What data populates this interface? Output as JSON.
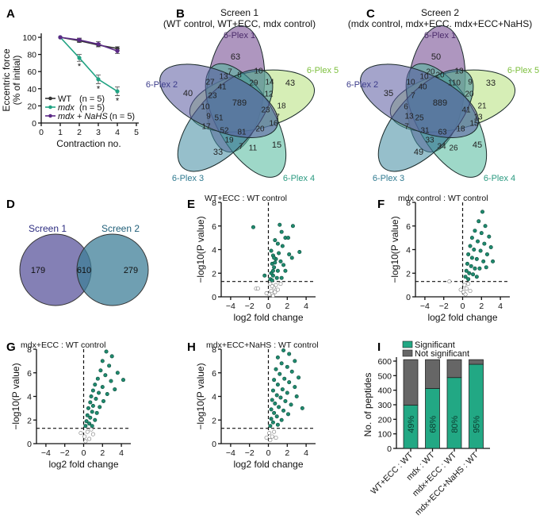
{
  "panels": {
    "A": "A",
    "B": "B",
    "C": "C",
    "D": "D",
    "E": "E",
    "F": "F",
    "G": "G",
    "H": "H",
    "I": "I"
  },
  "colors": {
    "wt": "#333333",
    "mdx": "#21a383",
    "nahs": "#5b2a86",
    "sig": "#1f8a6e",
    "nonsig": "#777777",
    "bar_sig": "#22a884",
    "bar_nonsig": "#666666"
  },
  "chart_data": [
    {
      "id": "A",
      "type": "line",
      "xlabel": "Contraction no.",
      "ylabel": [
        "Eccentric force",
        "(% of initial)"
      ],
      "xlim": [
        0,
        5
      ],
      "ylim": [
        0,
        100
      ],
      "xticks": [
        "0",
        "1",
        "2",
        "3",
        "4",
        "5"
      ],
      "yticks": [
        "0",
        "20",
        "40",
        "60",
        "80",
        "100"
      ],
      "x": [
        1,
        2,
        3,
        4
      ],
      "series": [
        {
          "name": "WT",
          "n": "(n = 5)",
          "values": [
            100,
            96,
            91,
            87
          ],
          "err": [
            0,
            2,
            2,
            2
          ]
        },
        {
          "name": "mdx",
          "n": "(n = 5)",
          "values": [
            100,
            76,
            51,
            37
          ],
          "err": [
            0,
            4,
            5,
            5
          ]
        },
        {
          "name": "mdx + NaHS",
          "n": "(n = 5)",
          "values": [
            100,
            97,
            92,
            84
          ],
          "err": [
            0,
            2,
            3,
            3
          ]
        }
      ],
      "annotations": [
        "*",
        "*",
        "*"
      ]
    },
    {
      "id": "B",
      "type": "venn",
      "title": "Screen 1",
      "subtitle": "(WT control, WT+ECC, mdx control)",
      "sets": [
        "6-Plex 1",
        "6-Plex 5",
        "6-Plex 4",
        "6-Plex 3",
        "6-Plex 2"
      ],
      "center": "789",
      "regions": [
        "63",
        "40",
        "43",
        "15",
        "33",
        "7",
        "8",
        "10",
        "27",
        "13",
        "41",
        "29",
        "14",
        "12",
        "23",
        "10",
        "9",
        "51",
        "23",
        "18",
        "7",
        "17",
        "52",
        "81",
        "20",
        "16",
        "19",
        "7",
        "11"
      ]
    },
    {
      "id": "C",
      "type": "venn",
      "title": "Screen 2",
      "subtitle": "(mdx control, mdx+ECC. mdx+ECC+NaHS)",
      "sets": [
        "6-Plex 1",
        "6-Plex 5",
        "6-Plex 4",
        "6-Plex 3",
        "6-Plex 2"
      ],
      "center": "889",
      "regions": [
        "50",
        "35",
        "33",
        "45",
        "49",
        "20",
        "20",
        "13",
        "10",
        "10",
        "40",
        "110",
        "9",
        "20",
        "7",
        "6",
        "13",
        "25",
        "41",
        "21",
        "13",
        "7",
        "31",
        "63",
        "18",
        "15",
        "33",
        "34",
        "26"
      ]
    },
    {
      "id": "D",
      "type": "venn",
      "sets": [
        "Screen 1",
        "Screen 2"
      ],
      "only1": "179",
      "both": "610",
      "only2": "279"
    },
    {
      "id": "E",
      "type": "scatter",
      "title": "WT+ECC : WT control",
      "xlabel": "log2 fold change",
      "ylabel": "−log10(P value)",
      "xlim": [
        -5,
        5
      ],
      "ylim": [
        0,
        8
      ],
      "threshold": 1.3,
      "points": [
        [
          -1.6,
          5.9
        ],
        [
          1.2,
          6.1
        ],
        [
          2.6,
          6.0
        ],
        [
          1.8,
          5.0
        ],
        [
          2.1,
          5.0
        ],
        [
          1.4,
          5.5
        ],
        [
          0.7,
          4.8
        ],
        [
          1.0,
          4.5
        ],
        [
          1.5,
          4.3
        ],
        [
          3.3,
          3.8
        ],
        [
          2.2,
          3.6
        ],
        [
          0.5,
          3.5
        ],
        [
          0.8,
          3.2
        ],
        [
          1.3,
          3.0
        ],
        [
          0.4,
          2.8
        ],
        [
          0.6,
          2.5
        ],
        [
          1.0,
          2.2
        ],
        [
          1.8,
          2.2
        ],
        [
          0.3,
          2.0
        ],
        [
          0.5,
          1.8
        ],
        [
          0.9,
          1.6
        ],
        [
          -0.4,
          1.8
        ],
        [
          0.2,
          1.5
        ],
        [
          1.4,
          1.6
        ],
        [
          0.7,
          2.9
        ],
        [
          0.3,
          3.9
        ],
        [
          2.5,
          3.3
        ],
        [
          1.6,
          2.7
        ],
        [
          0.5,
          2.2
        ],
        [
          1.1,
          3.7
        ],
        [
          0.4,
          1.4
        ],
        [
          0.6,
          3.3
        ],
        [
          -1.3,
          0.7
        ],
        [
          -1.1,
          0.7
        ],
        [
          0.1,
          0.2
        ],
        [
          0.3,
          0.5
        ],
        [
          0.6,
          0.8
        ],
        [
          0.8,
          1.0
        ],
        [
          0.2,
          1.1
        ],
        [
          1.0,
          0.6
        ],
        [
          -0.2,
          0.3
        ],
        [
          0.5,
          0.1
        ],
        [
          1.3,
          1.1
        ],
        [
          0.4,
          0.9
        ],
        [
          0.7,
          0.4
        ]
      ]
    },
    {
      "id": "F",
      "type": "scatter",
      "title": "mdx control : WT control",
      "xlabel": "log2 fold change",
      "ylabel": "−log10(P value)",
      "xlim": [
        -5,
        5
      ],
      "ylim": [
        0,
        8
      ],
      "threshold": 1.3,
      "points": [
        [
          2.1,
          7.2
        ],
        [
          1.7,
          6.4
        ],
        [
          2.4,
          6.0
        ],
        [
          1.3,
          5.6
        ],
        [
          2.0,
          5.4
        ],
        [
          2.8,
          5.1
        ],
        [
          1.0,
          5.0
        ],
        [
          1.6,
          4.7
        ],
        [
          2.3,
          4.5
        ],
        [
          3.0,
          4.2
        ],
        [
          0.8,
          4.3
        ],
        [
          1.2,
          4.0
        ],
        [
          1.9,
          3.9
        ],
        [
          2.6,
          3.6
        ],
        [
          0.6,
          3.6
        ],
        [
          1.0,
          3.3
        ],
        [
          1.5,
          3.2
        ],
        [
          2.2,
          3.0
        ],
        [
          3.2,
          3.0
        ],
        [
          0.5,
          2.8
        ],
        [
          0.9,
          2.6
        ],
        [
          1.3,
          2.4
        ],
        [
          1.8,
          2.4
        ],
        [
          0.4,
          2.2
        ],
        [
          0.7,
          2.0
        ],
        [
          1.1,
          1.9
        ],
        [
          0.3,
          1.7
        ],
        [
          0.6,
          1.5
        ],
        [
          1.5,
          1.7
        ],
        [
          2.5,
          2.5
        ],
        [
          -1.4,
          1.3
        ],
        [
          0.2,
          1.0
        ],
        [
          0.4,
          0.7
        ],
        [
          0.1,
          0.4
        ],
        [
          0.6,
          1.1
        ],
        [
          0.8,
          0.5
        ],
        [
          -0.2,
          0.6
        ],
        [
          0.3,
          0.2
        ]
      ]
    },
    {
      "id": "G",
      "type": "scatter",
      "title": "mdx+ECC : WT control",
      "xlabel": "log2 fold change",
      "ylabel": "−log10(P value)",
      "xlim": [
        -5,
        5
      ],
      "ylim": [
        0,
        8
      ],
      "threshold": 1.3,
      "points": [
        [
          2.4,
          7.8
        ],
        [
          3.0,
          7.4
        ],
        [
          2.0,
          7.0
        ],
        [
          2.7,
          6.6
        ],
        [
          3.6,
          6.0
        ],
        [
          1.8,
          6.2
        ],
        [
          2.3,
          5.8
        ],
        [
          1.5,
          5.5
        ],
        [
          2.9,
          5.3
        ],
        [
          1.2,
          5.0
        ],
        [
          2.0,
          4.8
        ],
        [
          3.3,
          4.6
        ],
        [
          1.0,
          4.5
        ],
        [
          1.6,
          4.3
        ],
        [
          2.5,
          4.2
        ],
        [
          0.8,
          4.0
        ],
        [
          1.3,
          3.8
        ],
        [
          2.1,
          3.6
        ],
        [
          0.7,
          3.5
        ],
        [
          1.0,
          3.2
        ],
        [
          1.7,
          3.1
        ],
        [
          0.5,
          3.0
        ],
        [
          0.9,
          2.7
        ],
        [
          1.4,
          2.6
        ],
        [
          0.4,
          2.4
        ],
        [
          0.7,
          2.2
        ],
        [
          1.2,
          2.0
        ],
        [
          0.3,
          1.9
        ],
        [
          0.6,
          1.7
        ],
        [
          0.9,
          1.5
        ],
        [
          4.2,
          5.4
        ],
        [
          0.2,
          1.5
        ],
        [
          -0.3,
          0.9
        ],
        [
          0.1,
          0.6
        ],
        [
          0.4,
          1.0
        ],
        [
          0.6,
          0.4
        ],
        [
          0.2,
          0.2
        ],
        [
          1.0,
          0.8
        ],
        [
          0.8,
          1.2
        ]
      ]
    },
    {
      "id": "H",
      "type": "scatter",
      "title": "mdx+ECC+NaHS : WT control",
      "xlabel": "log2 fold change",
      "ylabel": "−log10(P value)",
      "xlim": [
        -5,
        5
      ],
      "ylim": [
        0,
        8
      ],
      "threshold": 1.3,
      "points": [
        [
          1.6,
          7.9
        ],
        [
          2.2,
          7.6
        ],
        [
          1.0,
          7.3
        ],
        [
          2.8,
          7.0
        ],
        [
          1.4,
          6.8
        ],
        [
          2.0,
          6.5
        ],
        [
          0.8,
          6.3
        ],
        [
          2.5,
          6.1
        ],
        [
          1.2,
          5.9
        ],
        [
          3.2,
          5.6
        ],
        [
          1.7,
          5.5
        ],
        [
          0.6,
          5.4
        ],
        [
          2.2,
          5.2
        ],
        [
          1.0,
          5.0
        ],
        [
          2.8,
          4.8
        ],
        [
          1.5,
          4.6
        ],
        [
          0.5,
          4.5
        ],
        [
          2.0,
          4.3
        ],
        [
          0.9,
          4.1
        ],
        [
          3.0,
          4.0
        ],
        [
          1.3,
          3.9
        ],
        [
          0.4,
          3.7
        ],
        [
          1.8,
          3.6
        ],
        [
          0.7,
          3.4
        ],
        [
          2.4,
          3.3
        ],
        [
          1.1,
          3.1
        ],
        [
          0.3,
          2.9
        ],
        [
          1.6,
          2.8
        ],
        [
          0.6,
          2.6
        ],
        [
          2.1,
          2.5
        ],
        [
          0.9,
          2.3
        ],
        [
          0.3,
          2.1
        ],
        [
          1.4,
          2.0
        ],
        [
          0.5,
          1.8
        ],
        [
          1.0,
          1.6
        ],
        [
          0.2,
          1.5
        ],
        [
          3.6,
          3.0
        ],
        [
          0.1,
          0.9
        ],
        [
          0.4,
          0.6
        ],
        [
          0.2,
          0.3
        ],
        [
          -0.2,
          0.5
        ],
        [
          0.6,
          1.0
        ],
        [
          0.8,
          0.5
        ]
      ]
    },
    {
      "id": "I",
      "type": "bar",
      "stacked": true,
      "ylabel": "No. of peptides",
      "ylim": [
        0,
        600
      ],
      "yticks": [
        "0",
        "100",
        "200",
        "300",
        "400",
        "500",
        "600"
      ],
      "categories": [
        "WT+ECC : WT",
        "mdx : WT",
        "mdx+ECC : WT",
        "mdx+ECC+NaHS : WT"
      ],
      "series": [
        {
          "name": "Significant",
          "values": [
            298,
            412,
            487,
            578
          ]
        },
        {
          "name": "Not significant",
          "values": [
            312,
            198,
            123,
            32
          ]
        }
      ],
      "labels": [
        "49%",
        "68%",
        "80%",
        "95%"
      ],
      "legend": "top"
    }
  ]
}
